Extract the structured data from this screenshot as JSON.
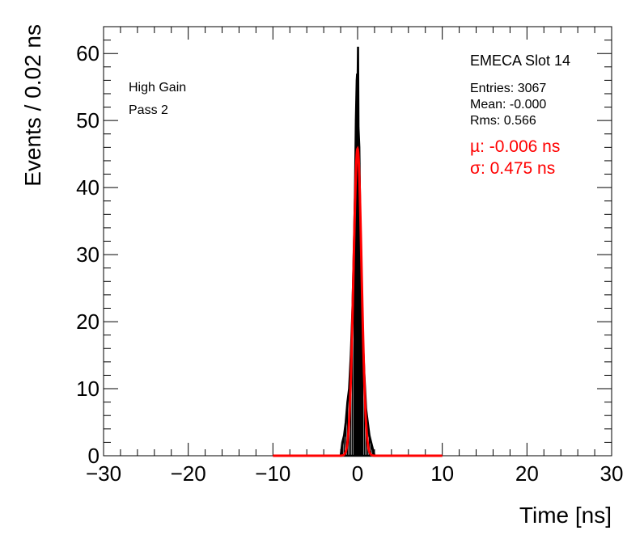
{
  "chart_data": {
    "type": "histogram",
    "xlabel": "Time [ns]",
    "ylabel": "Events / 0.02 ns",
    "xlim": [
      -30,
      30
    ],
    "ylim": [
      0,
      64
    ],
    "xticks": [
      -30,
      -20,
      -10,
      0,
      10,
      20,
      30
    ],
    "xtick_labels": [
      "−30",
      "−20",
      "−10",
      "0",
      "10",
      "20",
      "30"
    ],
    "yticks": [
      0,
      10,
      20,
      30,
      40,
      50,
      60
    ],
    "ytick_labels": [
      "0",
      "10",
      "20",
      "30",
      "40",
      "50",
      "60"
    ],
    "bin_width": 0.02,
    "histogram_envelope": [
      {
        "x": -2.0,
        "y": 0
      },
      {
        "x": -1.8,
        "y": 2
      },
      {
        "x": -1.6,
        "y": 3
      },
      {
        "x": -1.4,
        "y": 5
      },
      {
        "x": -1.2,
        "y": 8
      },
      {
        "x": -1.0,
        "y": 10
      },
      {
        "x": -0.8,
        "y": 15
      },
      {
        "x": -0.6,
        "y": 22
      },
      {
        "x": -0.4,
        "y": 33
      },
      {
        "x": -0.3,
        "y": 40
      },
      {
        "x": -0.2,
        "y": 50
      },
      {
        "x": -0.1,
        "y": 56
      },
      {
        "x": -0.05,
        "y": 57
      },
      {
        "x": 0.0,
        "y": 55
      },
      {
        "x": 0.05,
        "y": 61
      },
      {
        "x": 0.1,
        "y": 49
      },
      {
        "x": 0.2,
        "y": 46
      },
      {
        "x": 0.3,
        "y": 36
      },
      {
        "x": 0.4,
        "y": 31
      },
      {
        "x": 0.5,
        "y": 24
      },
      {
        "x": 0.6,
        "y": 18
      },
      {
        "x": 0.8,
        "y": 12
      },
      {
        "x": 1.0,
        "y": 7
      },
      {
        "x": 1.2,
        "y": 5
      },
      {
        "x": 1.4,
        "y": 3
      },
      {
        "x": 1.6,
        "y": 2
      },
      {
        "x": 1.8,
        "y": 1
      },
      {
        "x": 2.0,
        "y": 0
      }
    ],
    "fit": {
      "type": "gaussian",
      "mu": -0.006,
      "sigma": 0.475,
      "amplitude": 45.8,
      "range": [
        -10,
        10
      ],
      "color": "#ff0000"
    },
    "annotations": {
      "left": [
        "High Gain",
        "Pass 2"
      ]
    },
    "stats_box": {
      "title": "EMECA Slot 14",
      "lines": [
        "Entries: 3067",
        "Mean: -0.000",
        "Rms: 0.566"
      ],
      "fit_lines": [
        "µ: -0.006 ns",
        "σ: 0.475 ns"
      ]
    },
    "colors": {
      "histogram": "#000000",
      "fit": "#ff0000",
      "frame": "#000000"
    }
  }
}
